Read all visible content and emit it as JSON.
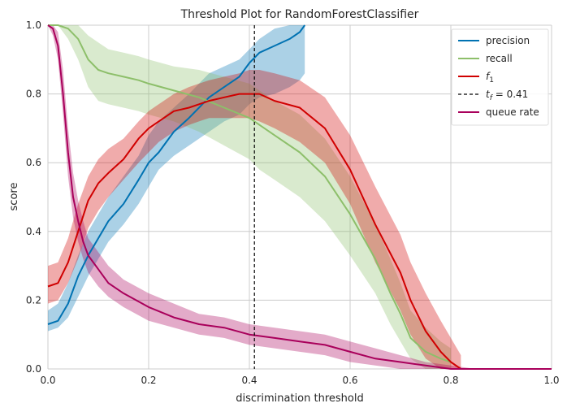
{
  "chart_data": {
    "type": "line",
    "title": "Threshold Plot for RandomForestClassifier",
    "xlabel": "discrimination threshold",
    "ylabel": "score",
    "xlim": [
      0,
      1
    ],
    "ylim": [
      0,
      1
    ],
    "xticks": [
      "0.0",
      "0.2",
      "0.4",
      "0.6",
      "0.8",
      "1.0"
    ],
    "yticks": [
      "0.0",
      "0.2",
      "0.4",
      "0.6",
      "0.8",
      "1.0"
    ],
    "grid": true,
    "legend_position": "top-right",
    "threshold": {
      "x": 0.41,
      "label_prefix": "t",
      "label_sub": "f",
      "label_value": " = 0.41",
      "color": "#000000"
    },
    "series": [
      {
        "name": "precision",
        "color": "#0072b2",
        "x": [
          0.0,
          0.02,
          0.04,
          0.06,
          0.08,
          0.1,
          0.12,
          0.15,
          0.18,
          0.2,
          0.22,
          0.25,
          0.28,
          0.3,
          0.32,
          0.35,
          0.38,
          0.4,
          0.42,
          0.45,
          0.48,
          0.5,
          0.51
        ],
        "y": [
          0.13,
          0.14,
          0.19,
          0.27,
          0.33,
          0.38,
          0.43,
          0.48,
          0.55,
          0.6,
          0.63,
          0.69,
          0.73,
          0.76,
          0.79,
          0.82,
          0.85,
          0.89,
          0.92,
          0.94,
          0.96,
          0.98,
          1.0
        ],
        "lower": [
          0.11,
          0.12,
          0.15,
          0.21,
          0.27,
          0.32,
          0.37,
          0.42,
          0.48,
          0.53,
          0.58,
          0.62,
          0.65,
          0.67,
          0.69,
          0.72,
          0.74,
          0.77,
          0.79,
          0.8,
          0.82,
          0.84,
          0.86
        ],
        "upper": [
          0.17,
          0.19,
          0.25,
          0.33,
          0.4,
          0.45,
          0.5,
          0.56,
          0.62,
          0.68,
          0.72,
          0.76,
          0.8,
          0.83,
          0.86,
          0.88,
          0.9,
          0.93,
          0.96,
          0.99,
          1.0,
          1.0,
          1.0
        ]
      },
      {
        "name": "recall",
        "color": "#8dbf6a",
        "x": [
          0.0,
          0.02,
          0.04,
          0.06,
          0.08,
          0.1,
          0.12,
          0.15,
          0.18,
          0.2,
          0.25,
          0.3,
          0.35,
          0.4,
          0.42,
          0.45,
          0.5,
          0.55,
          0.6,
          0.65,
          0.68,
          0.7,
          0.72,
          0.75,
          0.78,
          0.8
        ],
        "y": [
          1.0,
          1.0,
          0.99,
          0.96,
          0.9,
          0.87,
          0.86,
          0.85,
          0.84,
          0.83,
          0.81,
          0.79,
          0.76,
          0.73,
          0.71,
          0.68,
          0.63,
          0.56,
          0.45,
          0.32,
          0.22,
          0.16,
          0.09,
          0.05,
          0.03,
          0.02
        ],
        "lower": [
          1.0,
          1.0,
          0.96,
          0.9,
          0.82,
          0.78,
          0.77,
          0.76,
          0.75,
          0.74,
          0.72,
          0.69,
          0.65,
          0.61,
          0.58,
          0.55,
          0.5,
          0.43,
          0.33,
          0.22,
          0.13,
          0.08,
          0.03,
          0.0,
          0.0,
          0.0
        ],
        "upper": [
          1.0,
          1.0,
          1.0,
          1.0,
          0.97,
          0.95,
          0.93,
          0.92,
          0.91,
          0.9,
          0.88,
          0.87,
          0.85,
          0.83,
          0.81,
          0.78,
          0.74,
          0.67,
          0.56,
          0.42,
          0.32,
          0.25,
          0.17,
          0.12,
          0.08,
          0.06
        ]
      },
      {
        "name": "f1",
        "display_base": "f",
        "display_sub": "1",
        "color": "#d00000",
        "x": [
          0.0,
          0.02,
          0.04,
          0.06,
          0.08,
          0.1,
          0.12,
          0.15,
          0.18,
          0.2,
          0.22,
          0.25,
          0.28,
          0.3,
          0.32,
          0.35,
          0.38,
          0.4,
          0.42,
          0.45,
          0.5,
          0.55,
          0.6,
          0.65,
          0.7,
          0.72,
          0.75,
          0.78,
          0.8,
          0.82
        ],
        "y": [
          0.24,
          0.25,
          0.31,
          0.4,
          0.49,
          0.54,
          0.57,
          0.61,
          0.67,
          0.7,
          0.72,
          0.75,
          0.76,
          0.77,
          0.78,
          0.79,
          0.8,
          0.8,
          0.8,
          0.78,
          0.76,
          0.7,
          0.58,
          0.42,
          0.28,
          0.2,
          0.11,
          0.05,
          0.02,
          0.0
        ],
        "lower": [
          0.19,
          0.2,
          0.25,
          0.32,
          0.41,
          0.46,
          0.5,
          0.55,
          0.6,
          0.63,
          0.66,
          0.69,
          0.71,
          0.72,
          0.73,
          0.73,
          0.73,
          0.73,
          0.72,
          0.7,
          0.66,
          0.6,
          0.48,
          0.31,
          0.17,
          0.1,
          0.03,
          0.0,
          0.0,
          0.0
        ],
        "upper": [
          0.3,
          0.31,
          0.38,
          0.48,
          0.56,
          0.61,
          0.64,
          0.67,
          0.72,
          0.75,
          0.77,
          0.8,
          0.82,
          0.83,
          0.84,
          0.85,
          0.86,
          0.87,
          0.87,
          0.86,
          0.84,
          0.79,
          0.68,
          0.53,
          0.39,
          0.31,
          0.22,
          0.14,
          0.09,
          0.04
        ]
      },
      {
        "name": "queue rate",
        "color": "#a9005b",
        "x": [
          0.0,
          0.01,
          0.02,
          0.03,
          0.04,
          0.05,
          0.06,
          0.07,
          0.08,
          0.1,
          0.12,
          0.15,
          0.2,
          0.25,
          0.3,
          0.35,
          0.4,
          0.45,
          0.5,
          0.55,
          0.6,
          0.65,
          0.7,
          0.75,
          0.8,
          0.85,
          1.0
        ],
        "y": [
          1.0,
          0.99,
          0.94,
          0.8,
          0.63,
          0.5,
          0.43,
          0.37,
          0.33,
          0.29,
          0.25,
          0.22,
          0.18,
          0.15,
          0.13,
          0.12,
          0.1,
          0.09,
          0.08,
          0.07,
          0.05,
          0.03,
          0.02,
          0.01,
          0.0,
          0.0,
          0.0
        ],
        "lower": [
          1.0,
          0.97,
          0.9,
          0.74,
          0.56,
          0.44,
          0.37,
          0.32,
          0.28,
          0.24,
          0.21,
          0.18,
          0.14,
          0.12,
          0.1,
          0.09,
          0.07,
          0.06,
          0.05,
          0.04,
          0.02,
          0.01,
          0.0,
          0.0,
          0.0,
          0.0,
          0.0
        ],
        "upper": [
          1.0,
          1.0,
          0.98,
          0.87,
          0.7,
          0.57,
          0.49,
          0.43,
          0.38,
          0.34,
          0.3,
          0.26,
          0.22,
          0.19,
          0.16,
          0.15,
          0.13,
          0.12,
          0.11,
          0.1,
          0.08,
          0.06,
          0.04,
          0.02,
          0.01,
          0.0,
          0.0
        ]
      }
    ]
  }
}
